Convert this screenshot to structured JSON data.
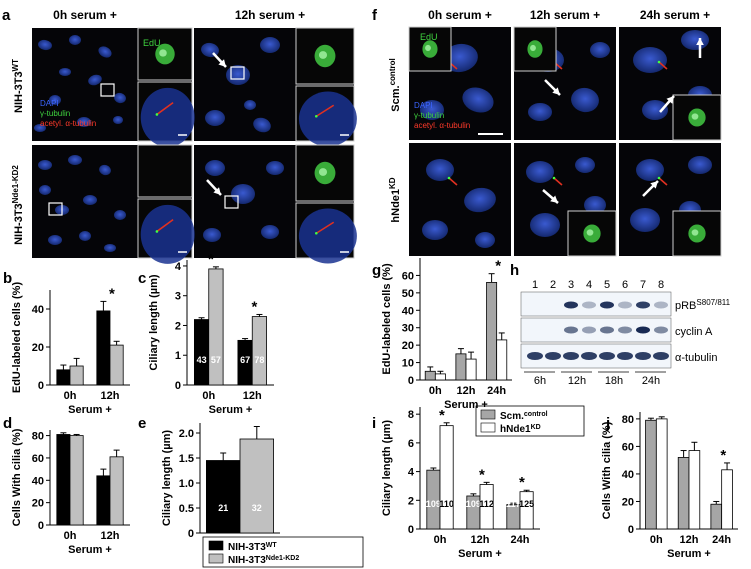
{
  "panel_letters": {
    "a": "a",
    "b": "b",
    "c": "c",
    "d": "d",
    "e": "e",
    "f": "f",
    "g": "g",
    "h": "h",
    "i": "i",
    "j": "j"
  },
  "panel_a": {
    "col1": "0h serum +",
    "col2": "12h serum +",
    "row1_main": "NIH-3T3",
    "row1_sup": "WT",
    "row2_main": "NIH-3T3",
    "row2_sup": "Nde1-KD2",
    "legend_dapi": "DAPI",
    "legend_gtub": "γ-tubulin",
    "legend_acet": "acetyl. α-tubulin",
    "edu": "EdU"
  },
  "panel_f": {
    "col1": "0h serum +",
    "col2": "12h serum +",
    "col3": "24h serum +",
    "row1_main": "Scm.",
    "row1_sup": "control",
    "row2_main": "hNde1",
    "row2_sup": "KD",
    "legend_dapi": "DAPI",
    "legend_gtub": "γ-tubulin",
    "legend_acet": "acetyl. α-tubulin",
    "edu": "EdU"
  },
  "panel_h": {
    "lanes": [
      "1",
      "2",
      "3",
      "4",
      "5",
      "6",
      "7",
      "8"
    ],
    "blot1_main": "pRB",
    "blot1_sup": "S807/811",
    "blot2": "cyclin A",
    "blot3": "α-tubulin",
    "times": [
      "6h",
      "12h",
      "18h",
      "24h"
    ]
  },
  "legend_e": {
    "wt_main": "NIH-3T3",
    "wt_sup": "WT",
    "kd_main": "NIH-3T3",
    "kd_sup": "Nde1-KD2"
  },
  "legend_i": {
    "ctrl_main": "Scm.",
    "ctrl_sup": "control",
    "kd_main": "hNde1",
    "kd_sup": "KD"
  },
  "colors": {
    "wt": "#000000",
    "kd": "#c0c0c0",
    "ctrl": "#a6a6a6",
    "hkd": "#ffffff",
    "nucleus": "#1e3aa8",
    "edu": "#3fbf3f",
    "cilia": "#e03020"
  },
  "chart_data": [
    {
      "id": "b",
      "type": "bar",
      "ylabel": "EdU-labeled cells (%)",
      "xlabel": "Serum +",
      "categories": [
        "0h",
        "12h"
      ],
      "ylim": [
        0,
        50
      ],
      "yticks": [
        0,
        20,
        40
      ],
      "series": [
        {
          "values": [
            8,
            39
          ],
          "errors": [
            2.5,
            5
          ]
        },
        {
          "values": [
            10,
            21
          ],
          "errors": [
            4,
            2
          ]
        }
      ],
      "star": [
        "",
        "*"
      ],
      "counts": [
        [],
        []
      ]
    },
    {
      "id": "c",
      "type": "bar",
      "ylabel": "Ciliary length (µm)",
      "xlabel": "Serum +",
      "categories": [
        "0h",
        "12h"
      ],
      "ylim": [
        0,
        4.2
      ],
      "yticks": [
        0,
        1,
        2,
        3,
        4
      ],
      "series": [
        {
          "values": [
            2.2,
            1.5
          ],
          "errors": [
            0.06,
            0.06
          ]
        },
        {
          "values": [
            3.9,
            2.3
          ],
          "errors": [
            0.07,
            0.07
          ]
        }
      ],
      "star": [
        "*",
        "*"
      ],
      "counts": [
        [
          "43",
          "67"
        ],
        [
          "57",
          "78"
        ]
      ]
    },
    {
      "id": "d",
      "type": "bar",
      "ylabel": "Cells With cilia (%)",
      "xlabel": "Serum +",
      "categories": [
        "0h",
        "12h"
      ],
      "ylim": [
        0,
        85
      ],
      "yticks": [
        0,
        20,
        40,
        60,
        80
      ],
      "series": [
        {
          "values": [
            81,
            44
          ],
          "errors": [
            1.5,
            6
          ]
        },
        {
          "values": [
            80,
            61
          ],
          "errors": [
            1,
            6
          ]
        }
      ],
      "star": [
        "",
        ""
      ],
      "counts": [
        [],
        []
      ]
    },
    {
      "id": "e",
      "type": "bar",
      "ylabel": "Ciliary length (µm)",
      "xlabel": "",
      "categories": [
        ""
      ],
      "ylim": [
        0,
        2.2
      ],
      "yticks": [
        0,
        0.5,
        1.0,
        1.5,
        2.0
      ],
      "ytick_labels": [
        "0",
        "0.5",
        "1.0",
        "1.5",
        "2.0"
      ],
      "series": [
        {
          "values": [
            1.45
          ],
          "errors": [
            0.15
          ]
        },
        {
          "values": [
            1.88
          ],
          "errors": [
            0.25
          ]
        }
      ],
      "star": [
        ""
      ],
      "counts": [
        [
          "21"
        ],
        [
          "32"
        ]
      ]
    },
    {
      "id": "g",
      "type": "bar",
      "ylabel": "EdU-labeled cells (%)",
      "xlabel": "Serum +",
      "categories": [
        "0h",
        "12h",
        "24h"
      ],
      "ylim": [
        0,
        70
      ],
      "yticks": [
        0,
        10,
        20,
        30,
        40,
        50,
        60
      ],
      "series": [
        {
          "values": [
            5,
            15,
            56
          ],
          "errors": [
            2.5,
            3,
            5
          ]
        },
        {
          "values": [
            3.5,
            12,
            23
          ],
          "errors": [
            1.5,
            4,
            4
          ]
        }
      ],
      "star": [
        "",
        "",
        "*"
      ],
      "counts": [
        [],
        []
      ]
    },
    {
      "id": "i",
      "type": "bar",
      "ylabel": "Ciliary length (µm)",
      "xlabel": "Serum +",
      "categories": [
        "0h",
        "12h",
        "24h"
      ],
      "ylim": [
        0,
        8.5
      ],
      "yticks": [
        0,
        2,
        4,
        6,
        8
      ],
      "series": [
        {
          "values": [
            4.1,
            2.3,
            1.7
          ],
          "errors": [
            0.15,
            0.15,
            0.1
          ]
        },
        {
          "values": [
            7.2,
            3.1,
            2.6
          ],
          "errors": [
            0.2,
            0.15,
            0.1
          ]
        }
      ],
      "star": [
        "*",
        "*",
        "*"
      ],
      "counts": [
        [
          "109",
          "109",
          "117"
        ],
        [
          "110",
          "112",
          "125"
        ]
      ]
    },
    {
      "id": "j",
      "type": "bar",
      "ylabel": "Cells With cilia (%)",
      "xlabel": "Serum +",
      "categories": [
        "0h",
        "12h",
        "24h"
      ],
      "ylim": [
        0,
        85
      ],
      "yticks": [
        0,
        20,
        40,
        60,
        80
      ],
      "series": [
        {
          "values": [
            79,
            52,
            18
          ],
          "errors": [
            1.5,
            5,
            2
          ]
        },
        {
          "values": [
            80,
            57,
            43
          ],
          "errors": [
            1.5,
            6,
            5
          ]
        }
      ],
      "star": [
        "",
        "",
        "*"
      ],
      "counts": [
        [],
        []
      ]
    }
  ]
}
